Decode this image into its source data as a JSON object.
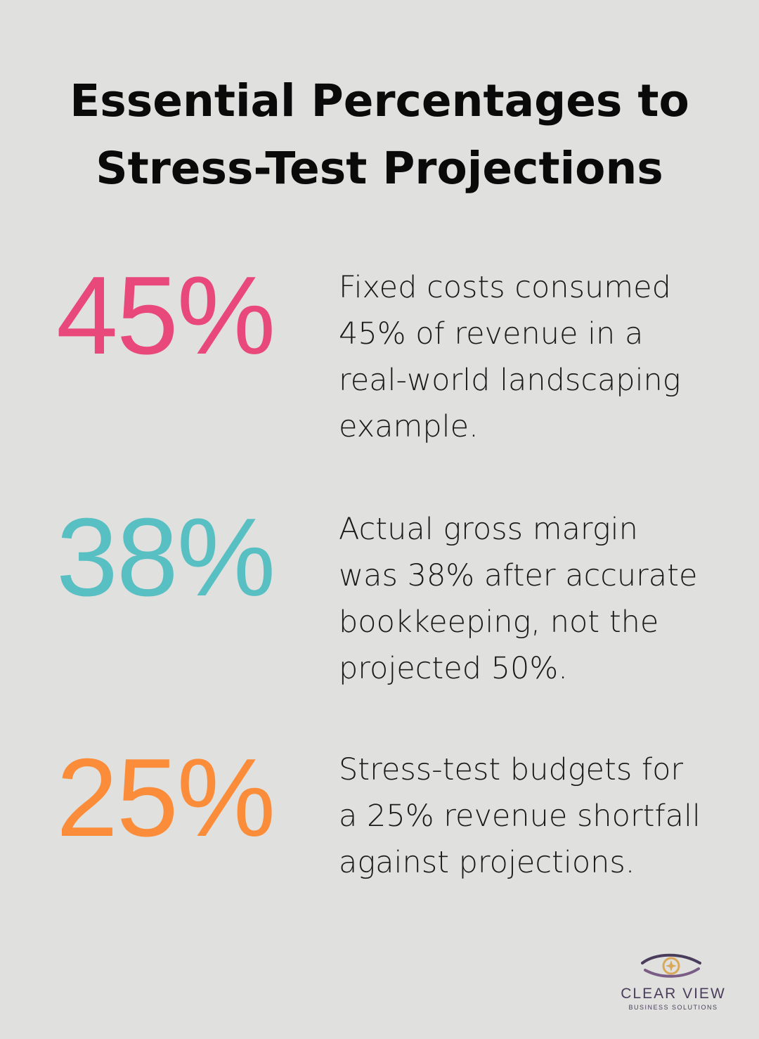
{
  "title": {
    "line1": "Essential Percentages to",
    "line2": "Stress-Test Projections"
  },
  "stats": [
    {
      "value": "45%",
      "color": "#e8487a",
      "lines": [
        "Fixed costs consumed",
        "45% of revenue in a",
        "real-world landscaping",
        "example."
      ]
    },
    {
      "value": "38%",
      "color": "#58bfc3",
      "lines": [
        "Actual gross margin",
        "was 38% after accurate",
        "bookkeeping, not the",
        "projected 50%."
      ]
    },
    {
      "value": "25%",
      "color": "#fb8c3a",
      "lines": [
        "Stress-test budgets for",
        "a 25% revenue shortfall",
        "against projections."
      ]
    }
  ],
  "logo": {
    "name": "CLEAR VIEW",
    "tagline": "BUSINESS SOLUTIONS",
    "icon": "eye-star-icon",
    "color": "#4a3d5c",
    "accent": "#d9a85a"
  }
}
